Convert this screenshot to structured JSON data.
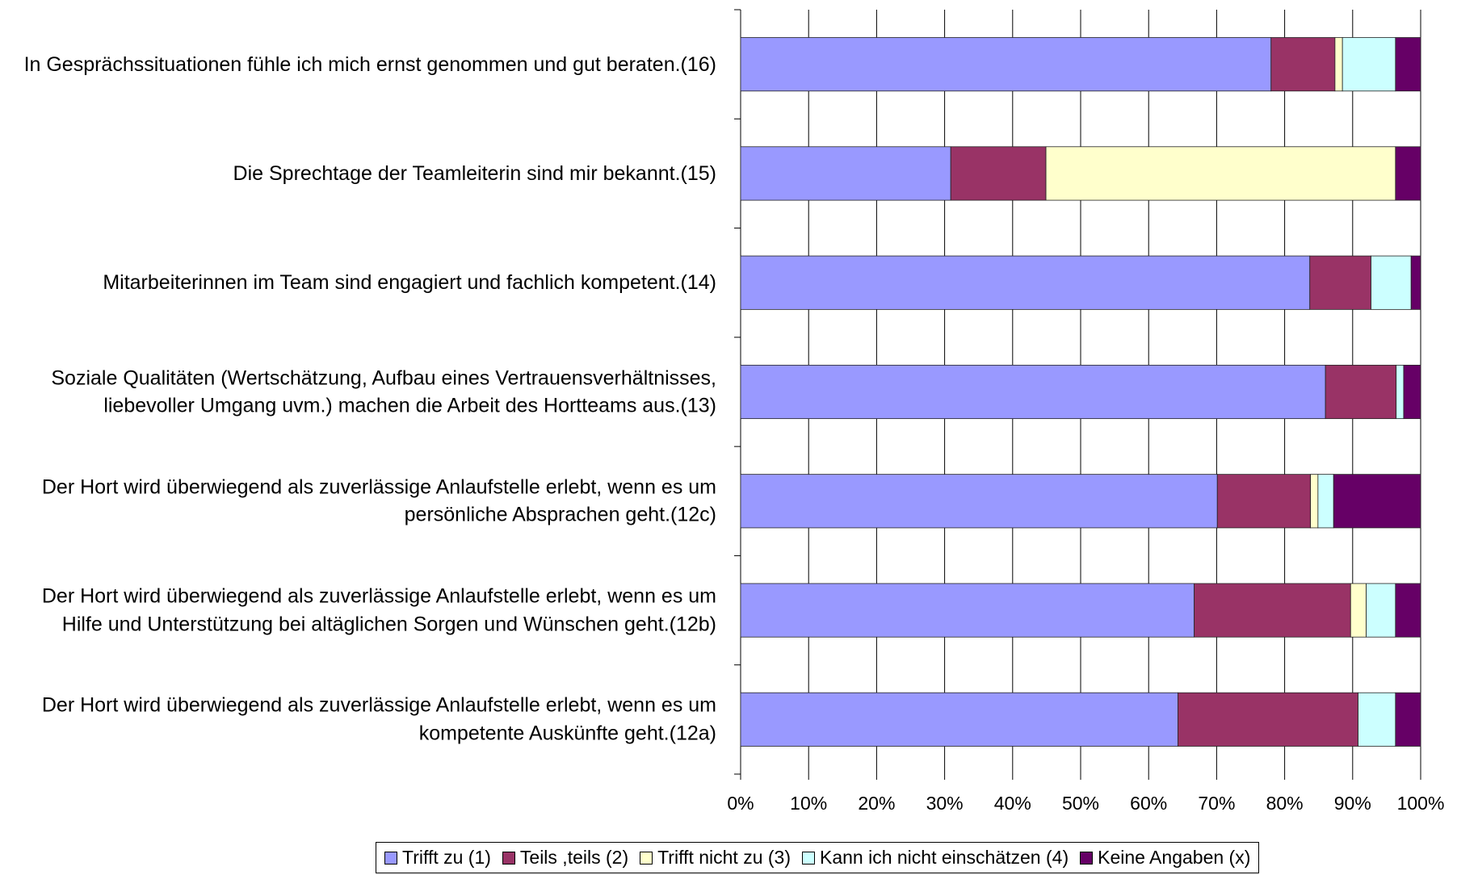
{
  "chart_data": {
    "type": "stacked_barh",
    "categories": [
      "In Gesprächssituationen fühle ich mich ernst genommen und gut beraten.(16)",
      "Die Sprechtage der Teamleiterin sind mir bekannt.(15)",
      "Mitarbeiterinnen im Team sind engagiert und fachlich kompetent.(14)",
      "Soziale Qualitäten (Wertschätzung, Aufbau eines Vertrauensverhältnisses, liebevoller Umgang uvm.) machen die Arbeit des Hortteams aus.(13)",
      "Der Hort wird überwiegend als zuverlässige Anlaufstelle erlebt, wenn es um persönliche Absprachen geht.(12c)",
      "Der Hort wird überwiegend als zuverlässige Anlaufstelle erlebt, wenn es um Hilfe und Unterstützung bei altäglichen Sorgen und Wünschen geht.(12b)",
      "Der Hort wird überwiegend als zuverlässige Anlaufstelle erlebt, wenn es um kompetente Auskünfte geht.(12a)"
    ],
    "series": [
      {
        "name": "Trifft zu (1)",
        "color": "#9999ff",
        "values": [
          78.0,
          30.9,
          83.7,
          86.0,
          70.1,
          66.7,
          64.3
        ]
      },
      {
        "name": "Teils ,teils (2)",
        "color": "#993366",
        "values": [
          9.4,
          14.0,
          9.0,
          10.4,
          13.7,
          23.0,
          26.5
        ]
      },
      {
        "name": "Trifft nicht zu (3)",
        "color": "#ffffcc",
        "values": [
          1.1,
          51.4,
          0,
          0,
          1.1,
          2.3,
          0
        ]
      },
      {
        "name": "Kann ich nicht einschätzen (4)",
        "color": "#ccffff",
        "values": [
          7.8,
          0,
          5.9,
          1.1,
          2.3,
          4.3,
          5.5
        ]
      },
      {
        "name": "Keine Angaben (x)",
        "color": "#660066",
        "values": [
          3.7,
          3.7,
          1.4,
          2.5,
          12.8,
          3.7,
          3.7
        ]
      }
    ],
    "xlim": [
      0,
      100
    ],
    "xticks": [
      {
        "value": 0,
        "label": "0%"
      },
      {
        "value": 10,
        "label": "10%"
      },
      {
        "value": 20,
        "label": "20%"
      },
      {
        "value": 30,
        "label": "30%"
      },
      {
        "value": 40,
        "label": "40%"
      },
      {
        "value": 50,
        "label": "50%"
      },
      {
        "value": 60,
        "label": "60%"
      },
      {
        "value": 70,
        "label": "70%"
      },
      {
        "value": 80,
        "label": "80%"
      },
      {
        "value": 90,
        "label": "90%"
      },
      {
        "value": 100,
        "label": "100%"
      }
    ],
    "grid": true,
    "legend": "bottom"
  }
}
